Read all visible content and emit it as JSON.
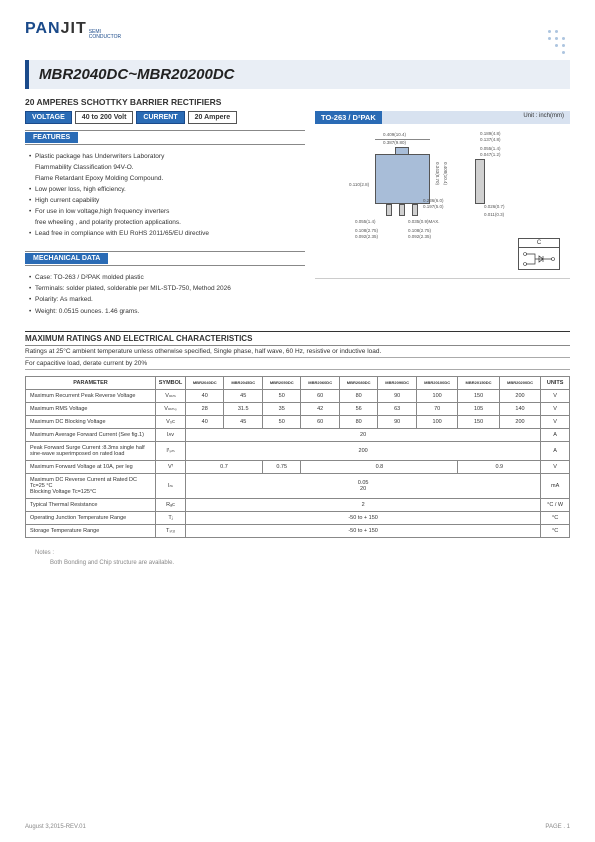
{
  "logo": {
    "part1": "PAN",
    "part2": "JIT",
    "sub1": "SEMI",
    "sub2": "CONDUCTOR"
  },
  "title": "MBR2040DC~MBR20200DC",
  "subtitle": "20 AMPERES SCHOTTKY BARRIER RECTIFIERS",
  "specs": {
    "voltage_label": "VOLTAGE",
    "voltage_value": "40 to 200 Volt",
    "current_label": "CURRENT",
    "current_value": "20 Ampere"
  },
  "features_head": "FEATURES",
  "features": [
    "Plastic package has Underwriters Laboratory",
    "Flammability Classification 94V-O.",
    "Flame Retardant Epoxy Molding Compound.",
    "Low power loss, high efficiency.",
    "High current capability",
    "For use in low voltage,high frequency inverters",
    "free wheeling , and polarity protection applications.",
    "Lead free in compliance with EU RoHS 2011/65/EU directive"
  ],
  "mech_head": "MECHANICAL DATA",
  "mech": [
    "Case: TO-263 / D²PAK molded plastic",
    "Terminals: solder plated, solderable per MIL-STD-750, Method 2026",
    "Polarity: As marked.",
    "Weight: 0.0515 ounces. 1.46 grams."
  ],
  "package": {
    "head": "TO-263 / D²PAK",
    "unit": "Unit : inch(mm)"
  },
  "dims": {
    "a": "0.409(10.4)",
    "b": "0.387(9.80)",
    "c": "0.189(4.8)",
    "d": "0.137(4.8)",
    "e": "0.055(1.4)",
    "f": "0.047(1.2)",
    "g": "0.110(2.8)",
    "h": "0.236(6.0)",
    "i": "0.197(5.0)",
    "j": "0.055(1.4)",
    "k": "0.035(0.9)MAX.",
    "l": "0.026(0.7)",
    "m": "0.011(0.3)",
    "n": "0.108(2.75)",
    "o": "0.092(2.35)",
    "p": "0.343(8.70)",
    "q": "0.408(10.4)"
  },
  "c_label": "C",
  "maxratings": {
    "head": "MAXIMUM RATINGS AND ELECTRICAL CHARACTERISTICS",
    "note1": "Ratings at 25°C ambient temperature unless otherwise specified, Single phase, half wave, 60 Hz, resistive or inductive load.",
    "note2": "For capacitive load, derate current by 20%"
  },
  "table": {
    "headers": [
      "PARAMETER",
      "SYMBOL",
      "MBR2040DC",
      "MBR2045DC",
      "MBR2050DC",
      "MBR2060DC",
      "MBR2080DC",
      "MBR2090DC",
      "MBR20100DC",
      "MBR20150DC",
      "MBR20200DC",
      "UNITS"
    ],
    "rows": [
      {
        "p": "Maximum Recurrent Peak Reverse Voltage",
        "s": "Vₘₘ",
        "v": [
          "40",
          "45",
          "50",
          "60",
          "80",
          "90",
          "100",
          "150",
          "200"
        ],
        "u": "V"
      },
      {
        "p": "Maximum RMS Voltage",
        "s": "Vₘₘₛ",
        "v": [
          "28",
          "31.5",
          "35",
          "42",
          "56",
          "63",
          "70",
          "105",
          "140"
        ],
        "u": "V"
      },
      {
        "p": "Maximum DC Blocking Voltage",
        "s": "V₀ᴄ",
        "v": [
          "40",
          "45",
          "50",
          "60",
          "80",
          "90",
          "100",
          "150",
          "200"
        ],
        "u": "V"
      },
      {
        "p": "Maximum Average Forward  Current (See fig.1)",
        "s": "Iᴀᴠ",
        "span": "20",
        "u": "A"
      },
      {
        "p": "Peak Forward Surge Current :8.3ms single half sine-wave superimposed on rated load",
        "s": "Iᶠₛₘ",
        "span": "200",
        "u": "A"
      },
      {
        "p": "Maximum Forward Voltage at 10A, per leg",
        "s": "Vᶠ",
        "groups": [
          {
            "c": 2,
            "v": "0.7"
          },
          {
            "c": 1,
            "v": "0.75"
          },
          {
            "c": 4,
            "v": "0.8"
          },
          {
            "c": 2,
            "v": "0.9"
          }
        ],
        "u": "V"
      },
      {
        "p": "Maximum DC Reverse Current at Rated DC   Tc=25 °C\nBlocking Voltage                                        Tc=125°C",
        "s": "Iₘ",
        "span2": [
          "0.05",
          "20"
        ],
        "u": "mA"
      },
      {
        "p": "Typical Thermal Resistance",
        "s": "Rₐᴄ",
        "span": "2",
        "u": "°C / W"
      },
      {
        "p": "Operating Junction Temperature Range",
        "s": "Tⱼ",
        "span": "-50 to + 150",
        "u": "°C"
      },
      {
        "p": "Storage Temperature Range",
        "s": "Tₛₜₒ",
        "span": "-50 to + 150",
        "u": "°C"
      }
    ]
  },
  "notes": {
    "head": "Notes :",
    "line": "Both Bonding and Chip structure are available."
  },
  "footer": {
    "left": "August 3,2015-REV.01",
    "right": "PAGE .  1"
  }
}
